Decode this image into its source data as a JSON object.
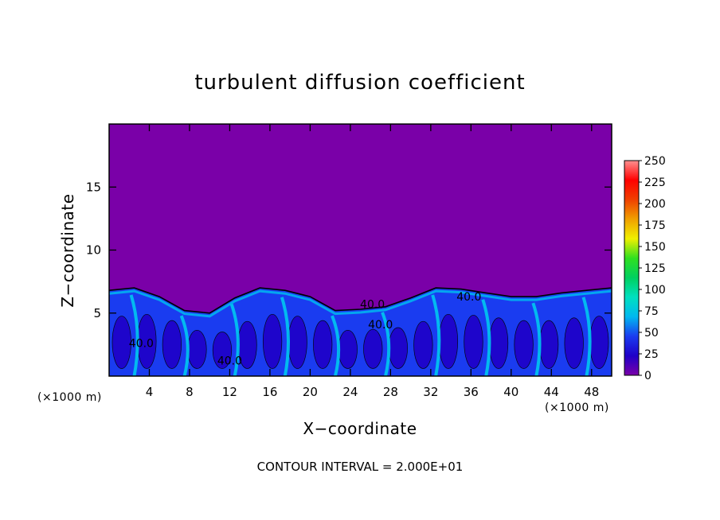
{
  "chart_data": {
    "type": "heatmap",
    "title": "turbulent diffusion coefficient",
    "xlabel": "X−coordinate",
    "ylabel": "Z−coordinate",
    "x_unit_label": "(×1000 m)",
    "y_unit_label": "(×1000 m)",
    "xlim": [
      0,
      50
    ],
    "ylim": [
      0,
      20
    ],
    "x_ticks": [
      4,
      8,
      12,
      16,
      20,
      24,
      28,
      32,
      36,
      40,
      44,
      48
    ],
    "x_tick_labels": [
      "4",
      "8",
      "12",
      "16",
      "20",
      "24",
      "28",
      "32",
      "36",
      "40",
      "44",
      "48"
    ],
    "y_ticks": [
      5,
      10,
      15
    ],
    "y_tick_labels": [
      "5",
      "10",
      "15"
    ],
    "colorbar": {
      "range": [
        0,
        250
      ],
      "ticks": [
        0,
        25,
        50,
        75,
        100,
        125,
        150,
        175,
        200,
        225,
        250
      ],
      "tick_labels": [
        "0",
        "25",
        "50",
        "75",
        "100",
        "125",
        "150",
        "175",
        "200",
        "225",
        "250"
      ],
      "colors": [
        "#7a00a8",
        "#1f00c8",
        "#1a3cf0",
        "#00b8f0",
        "#00e0c0",
        "#00d060",
        "#30e020",
        "#f0f000",
        "#f0a000",
        "#f04000",
        "#ff0000",
        "#ff9090"
      ]
    },
    "background_value": 0,
    "boundary_layer_top_km": [
      6.8,
      7.0,
      6.3,
      5.2,
      5.0,
      6.2,
      7.0,
      6.8,
      6.3,
      5.2,
      5.3,
      5.5,
      6.2,
      7.0,
      6.9,
      6.6,
      6.3,
      6.3,
      6.6,
      6.8,
      7.0
    ],
    "contour_labels": [
      {
        "text": "40.0",
        "x": 26.2,
        "y": 5.4
      },
      {
        "text": "40.0",
        "x": 27.0,
        "y": 3.8
      },
      {
        "text": "40.0",
        "x": 35.8,
        "y": 6.0
      },
      {
        "text": "40.0",
        "x": 3.2,
        "y": 2.3
      },
      {
        "text": "40.0",
        "x": 12.0,
        "y": 0.9
      }
    ],
    "contour_interval_label": "CONTOUR INTERVAL = 2.000E+01"
  }
}
